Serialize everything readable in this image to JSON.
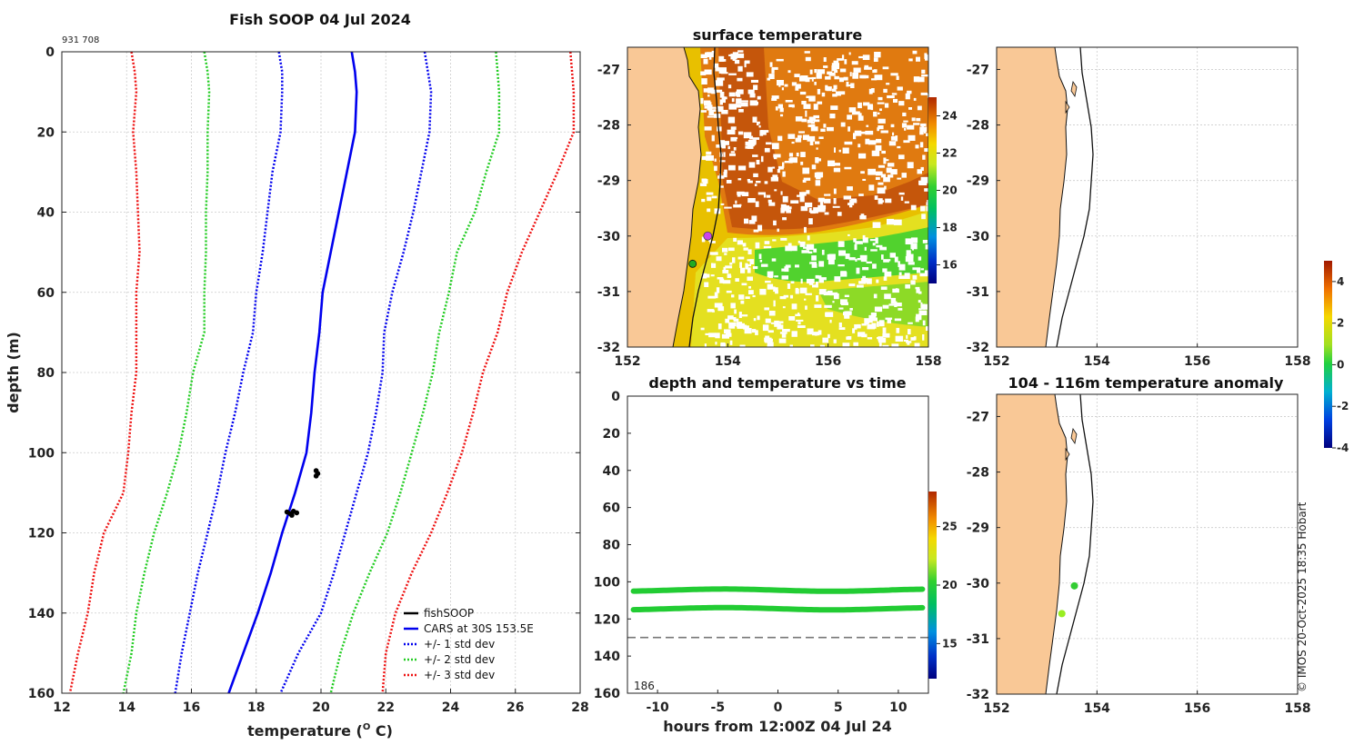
{
  "figure": {
    "main_title": "Fish SOOP 04 Jul 2024",
    "id_label": "931 708",
    "copyright": "© IMOS 20-Oct-2025 18:35 Hobart"
  },
  "chart_data": [
    {
      "id": "profile",
      "type": "line",
      "title": "Fish SOOP 04 Jul 2024",
      "xlabel": "temperature (",
      "xlabel_sup": "O",
      "xlabel_end": " C)",
      "ylabel": "depth (m)",
      "xlim": [
        12,
        28
      ],
      "ylim": [
        0,
        160
      ],
      "y_inverted": true,
      "xticks": [
        "12",
        "14",
        "16",
        "18",
        "20",
        "22",
        "24",
        "26",
        "28"
      ],
      "yticks": [
        "0",
        "20",
        "40",
        "60",
        "80",
        "100",
        "120",
        "140",
        "160"
      ],
      "legend": [
        "fishSOOP",
        "CARS at 30S 153.5E",
        "+/- 1 std dev",
        "+/- 2 std dev",
        "+/- 3 std dev"
      ],
      "legend_colors": [
        "#000000",
        "#0000ee",
        "#0000ee",
        "#22cc22",
        "#ee1111"
      ],
      "legend_dotted": [
        false,
        false,
        true,
        true,
        true
      ],
      "depth": [
        0,
        5,
        10,
        20,
        30,
        40,
        50,
        60,
        70,
        80,
        90,
        100,
        110,
        120,
        130,
        140,
        150,
        160
      ],
      "series": [
        {
          "name": "CARS at 30S 153.5E",
          "color": "#0000ee",
          "dash": false,
          "values": [
            20.95,
            21.05,
            21.1,
            21.05,
            20.8,
            20.55,
            20.3,
            20.05,
            19.95,
            19.8,
            19.7,
            19.55,
            19.2,
            18.8,
            18.45,
            18.05,
            17.6,
            17.15
          ]
        },
        {
          "name": "-1 std",
          "color": "#0000ee",
          "dash": true,
          "values": [
            18.7,
            18.8,
            18.8,
            18.75,
            18.5,
            18.35,
            18.2,
            18.0,
            17.9,
            17.6,
            17.35,
            17.05,
            16.8,
            16.5,
            16.2,
            15.95,
            15.7,
            15.5
          ]
        },
        {
          "name": "+1 std",
          "color": "#0000ee",
          "dash": true,
          "values": [
            23.2,
            23.3,
            23.4,
            23.35,
            23.1,
            22.85,
            22.55,
            22.2,
            21.95,
            21.9,
            21.7,
            21.45,
            21.1,
            20.75,
            20.4,
            20.0,
            19.3,
            18.75
          ]
        },
        {
          "name": "-2 std",
          "color": "#22cc22",
          "dash": true,
          "values": [
            16.4,
            16.5,
            16.55,
            16.5,
            16.5,
            16.45,
            16.45,
            16.4,
            16.4,
            16.05,
            15.85,
            15.6,
            15.25,
            14.85,
            14.55,
            14.3,
            14.15,
            13.9
          ]
        },
        {
          "name": "+2 std",
          "color": "#22cc22",
          "dash": true,
          "values": [
            25.4,
            25.45,
            25.5,
            25.5,
            25.1,
            24.75,
            24.2,
            23.95,
            23.65,
            23.45,
            23.15,
            22.8,
            22.45,
            22.05,
            21.5,
            21.0,
            20.6,
            20.3
          ]
        },
        {
          "name": "-3 std",
          "color": "#ee1111",
          "dash": true,
          "values": [
            14.15,
            14.25,
            14.3,
            14.2,
            14.3,
            14.35,
            14.4,
            14.3,
            14.3,
            14.3,
            14.15,
            14.05,
            13.9,
            13.3,
            13.0,
            12.8,
            12.5,
            12.25
          ]
        },
        {
          "name": "+3 std",
          "color": "#ee1111",
          "dash": true,
          "values": [
            27.7,
            27.75,
            27.8,
            27.8,
            27.3,
            26.75,
            26.2,
            25.75,
            25.45,
            25.0,
            24.7,
            24.35,
            23.9,
            23.4,
            22.8,
            22.3,
            22.0,
            21.9
          ]
        }
      ],
      "fishsoop_points": [
        {
          "x": 19.85,
          "y": 104.5
        },
        {
          "x": 19.9,
          "y": 105.2
        },
        {
          "x": 19.85,
          "y": 105.8
        },
        {
          "x": 18.95,
          "y": 114.8
        },
        {
          "x": 19.05,
          "y": 115.2
        },
        {
          "x": 19.15,
          "y": 114.6
        },
        {
          "x": 19.25,
          "y": 115.0
        },
        {
          "x": 19.1,
          "y": 115.6
        }
      ]
    },
    {
      "id": "sst_map",
      "type": "heatmap",
      "title": "surface temperature",
      "xlim": [
        152,
        158
      ],
      "ylim": [
        -32,
        -26.6
      ],
      "xticks": [
        "152",
        "154",
        "156",
        "158"
      ],
      "yticks": [
        "-27",
        "-28",
        "-29",
        "-30",
        "-31",
        "-32"
      ],
      "colorbar_range": [
        15,
        25
      ],
      "colorbar_ticks": [
        "16",
        "18",
        "20",
        "22",
        "24"
      ],
      "points": [
        {
          "lon": 153.6,
          "lat": -30.0,
          "color": "#cc44ee"
        },
        {
          "lon": 153.3,
          "lat": -30.5,
          "color": "#22aa22"
        }
      ]
    },
    {
      "id": "depth_time",
      "type": "scatter",
      "title": "depth and temperature vs time",
      "xlabel": "hours from 12:00Z 04 Jul 24",
      "xlim": [
        -12.5,
        12.5
      ],
      "ylim": [
        0,
        160
      ],
      "y_inverted": true,
      "xticks": [
        "-10",
        "-5",
        "0",
        "5",
        "10"
      ],
      "yticks": [
        "0",
        "20",
        "40",
        "60",
        "80",
        "100",
        "120",
        "140",
        "160"
      ],
      "annotation": "186",
      "reference_depth": 130,
      "colorbar_range": [
        12,
        28
      ],
      "colorbar_ticks": [
        "15",
        "20",
        "25"
      ],
      "series": [
        {
          "name": "upper",
          "depth": 104.5,
          "temperature": 19.9,
          "x_start": -12,
          "x_end": 12
        },
        {
          "name": "lower",
          "depth": 114.5,
          "temperature": 19.1,
          "x_start": -12,
          "x_end": 12
        }
      ]
    },
    {
      "id": "blank_map",
      "type": "scatter",
      "title": "",
      "xlim": [
        152,
        158
      ],
      "ylim": [
        -32,
        -26.6
      ],
      "xticks": [
        "152",
        "154",
        "156",
        "158"
      ],
      "yticks": [
        "-27",
        "-28",
        "-29",
        "-30",
        "-31",
        "-32"
      ]
    },
    {
      "id": "anomaly_map",
      "type": "scatter",
      "title": "104 - 116m temperature anomaly",
      "xlim": [
        152,
        158
      ],
      "ylim": [
        -32,
        -26.6
      ],
      "xticks": [
        "152",
        "154",
        "156",
        "158"
      ],
      "yticks": [
        "-27",
        "-28",
        "-29",
        "-30",
        "-31",
        "-32"
      ],
      "colorbar_range": [
        -4,
        5
      ],
      "colorbar_ticks": [
        "4",
        "2",
        "0",
        "-2",
        "-4"
      ],
      "points": [
        {
          "lon": 153.55,
          "lat": -30.05,
          "color": "#33cc33"
        },
        {
          "lon": 153.3,
          "lat": -30.55,
          "color": "#99ee22"
        }
      ]
    }
  ]
}
